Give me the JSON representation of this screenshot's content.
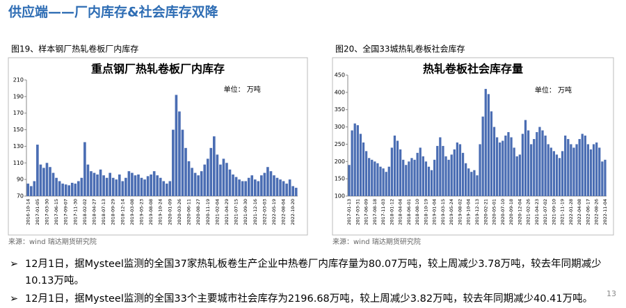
{
  "header": {
    "title": "供应端——厂内库存&社会库存双降"
  },
  "chart_data": [
    {
      "type": "bar",
      "caption": "图19、样本钢厂热轧卷板厂内库存",
      "title": "重点钢厂热轧卷板厂内库存",
      "annotation": "单位： 万吨",
      "source": "来源：wind   瑞达期货研究院",
      "color": "#4a6db3",
      "grid": false,
      "categories": [
        "2016-10-14",
        null,
        null,
        "2017-01-05",
        null,
        null,
        "2017-03-30",
        null,
        null,
        "2017-06-15",
        null,
        null,
        "2017-09-07",
        null,
        null,
        "2017-11-30",
        null,
        null,
        "2018-02-02",
        null,
        null,
        "2018-04-27",
        null,
        null,
        "2018-07-13",
        null,
        null,
        "2018-09-29",
        null,
        null,
        "2018-12-14",
        null,
        null,
        "2019-03-08",
        null,
        null,
        "2019-05-23",
        null,
        null,
        "2019-08-08",
        null,
        null,
        "2019-10-24",
        null,
        null,
        "2020-01-09",
        null,
        null,
        "2020-03-26",
        null,
        null,
        "2020-06-11",
        null,
        null,
        "2020-08-27",
        null,
        null,
        "2020-11-19",
        null,
        null,
        "2021-02-04",
        null,
        null,
        "2021-04-29",
        null,
        null,
        "2021-07-15",
        null,
        null,
        "2021-09-30",
        null,
        null,
        "2021-12-16",
        null,
        null,
        "2022-03-03",
        null,
        null,
        "2022-05-19",
        null,
        null,
        "2022-08-04",
        null,
        null,
        "2022-10-20",
        null
      ],
      "values": [
        85,
        82,
        88,
        132,
        108,
        104,
        110,
        105,
        98,
        92,
        88,
        85,
        84,
        83,
        86,
        85,
        88,
        92,
        135,
        108,
        100,
        98,
        96,
        102,
        95,
        92,
        98,
        92,
        90,
        96,
        88,
        92,
        100,
        98,
        95,
        96,
        92,
        90,
        94,
        96,
        100,
        95,
        92,
        88,
        85,
        88,
        150,
        192,
        172,
        150,
        128,
        112,
        104,
        98,
        95,
        100,
        108,
        115,
        128,
        142,
        120,
        108,
        115,
        110,
        102,
        96,
        93,
        90,
        88,
        88,
        92,
        95,
        90,
        88,
        95,
        98,
        105,
        100,
        95,
        92,
        90,
        88,
        85,
        90,
        82,
        80
      ],
      "ylim": [
        70,
        210
      ],
      "yticks": [
        70,
        90,
        110,
        130,
        150,
        170,
        190,
        210
      ]
    },
    {
      "type": "bar",
      "caption": "图20、全国33城热轧卷板社会库存",
      "title": "热轧卷板社会库存量",
      "annotation": "单位： 万吨",
      "source": "来源：wind   瑞达期货研究院",
      "color": "#4a6db3",
      "grid": false,
      "categories": [
        "2017-01-13",
        null,
        null,
        "2017-03-31",
        null,
        null,
        "2017-06-09",
        null,
        null,
        "2017-08-18",
        null,
        null,
        "2017-11-03",
        null,
        null,
        "2018-01-12",
        null,
        null,
        "2018-04-04",
        null,
        null,
        "2018-06-01",
        null,
        null,
        "2018-08-10",
        null,
        null,
        "2018-10-19",
        null,
        null,
        "2019-01-04",
        null,
        null,
        "2019-03-15",
        null,
        null,
        "2019-05-24",
        null,
        null,
        "2019-08-02",
        null,
        null,
        "2019-10-04",
        null,
        null,
        "2019-12-13",
        null,
        null,
        "2020-02-21",
        null,
        null,
        "2020-05-01",
        null,
        null,
        "2020-07-10",
        null,
        null,
        "2020-09-18",
        null,
        null,
        "2020-12-04",
        null,
        null,
        "2021-02-26",
        null,
        null,
        "2021-04-23",
        null,
        null,
        "2021-07-02",
        null,
        null,
        "2021-09-10",
        null,
        null,
        "2021-11-19",
        null,
        null,
        "2022-01-28",
        null,
        null,
        "2022-04-08",
        null,
        null,
        "2022-06-17",
        null,
        null,
        "2022-08-26",
        null,
        null,
        "2022-11-04"
      ],
      "values": [
        190,
        290,
        310,
        305,
        280,
        255,
        230,
        210,
        205,
        200,
        195,
        185,
        180,
        170,
        185,
        240,
        275,
        260,
        235,
        205,
        190,
        200,
        210,
        205,
        225,
        240,
        215,
        200,
        185,
        175,
        205,
        245,
        270,
        245,
        215,
        205,
        220,
        235,
        255,
        250,
        225,
        195,
        180,
        170,
        175,
        160,
        250,
        330,
        410,
        395,
        345,
        300,
        270,
        255,
        260,
        275,
        285,
        270,
        240,
        215,
        220,
        280,
        320,
        290,
        250,
        265,
        285,
        300,
        290,
        275,
        250,
        240,
        230,
        220,
        210,
        230,
        275,
        265,
        250,
        240,
        250,
        265,
        280,
        275,
        250,
        235,
        250,
        255,
        240,
        200,
        205
      ],
      "ylim": [
        100,
        450
      ],
      "yticks": [
        100,
        150,
        200,
        250,
        300,
        350,
        400,
        450
      ]
    }
  ],
  "bullets": [
    "12月1日，据Mysteel监测的全国37家热轧板卷生产企业中热卷厂内库存量为80.07万吨，较上周减少3.78万吨，较去年同期减少10.13万吨。",
    "12月1日，据Mysteel监测的全国33个主要城市社会库存为2196.68万吨，较上周减少3.82万吨，较去年同期减少40.41万吨。"
  ],
  "page_number": "13"
}
